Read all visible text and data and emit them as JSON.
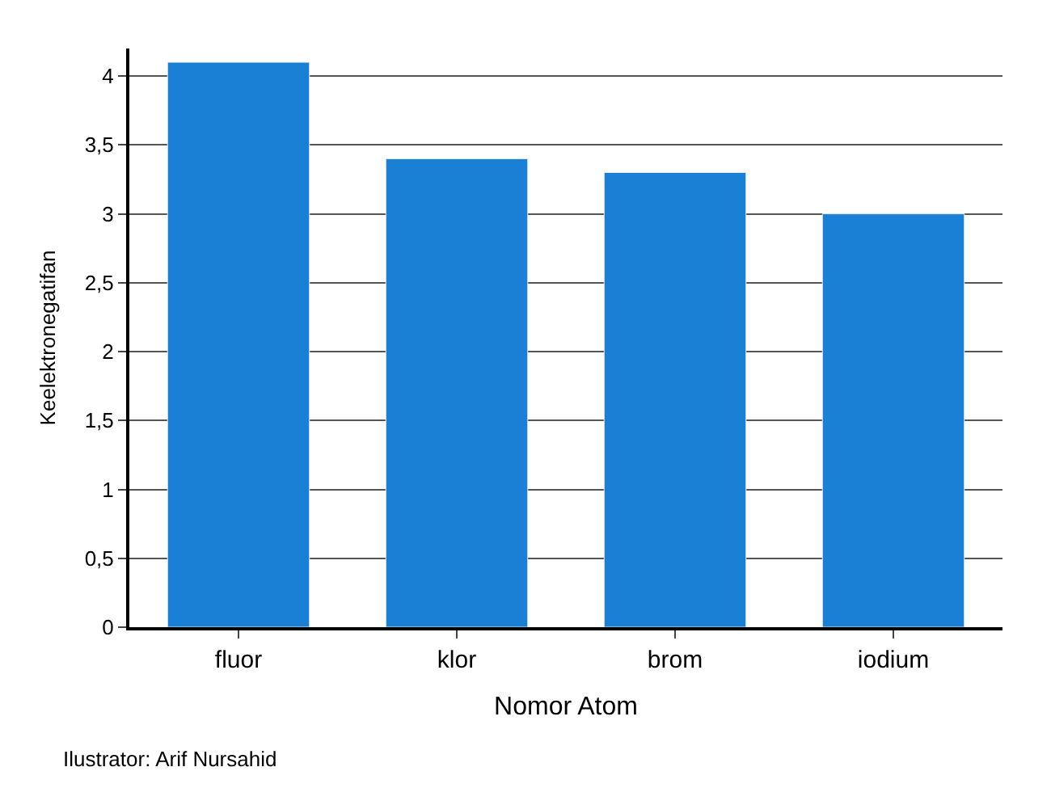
{
  "chart_data": {
    "type": "bar",
    "categories": [
      "fluor",
      "klor",
      "brom",
      "iodium"
    ],
    "values": [
      4.1,
      3.4,
      3.3,
      3.0
    ],
    "color": "#1a80d6",
    "xlabel": "Nomor Atom",
    "ylabel": "Keelektronegatifan",
    "ylim": [
      0,
      4.2
    ],
    "yticks": [
      0,
      {
        "value": 0.5,
        "label": "0,5"
      },
      1,
      {
        "value": 1.5,
        "label": "1,5"
      },
      2,
      {
        "value": 2.5,
        "label": "2,5"
      },
      3,
      {
        "value": 3.5,
        "label": "3,5"
      },
      4
    ],
    "grid": "y",
    "annotations": [
      "Ilustrator: Arif Nursahid"
    ]
  }
}
